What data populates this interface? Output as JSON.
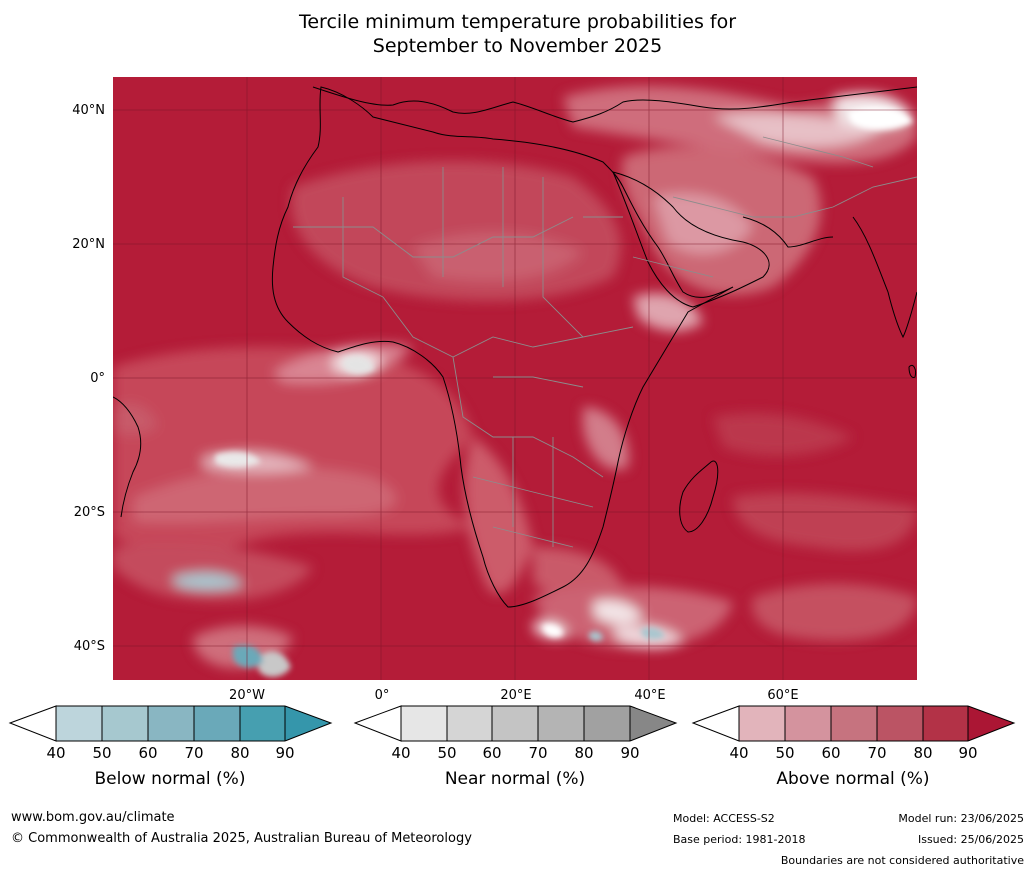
{
  "title_line1": "Tercile minimum temperature probabilities for",
  "title_line2": "September to November 2025",
  "map": {
    "lat_labels": [
      "40°N",
      "20°N",
      "0°",
      "20°S",
      "40°S"
    ],
    "lon_labels": [
      "20°W",
      "0°",
      "20°E",
      "40°E",
      "60°E"
    ],
    "base_color": "#b41c38",
    "graticule_color": "#7a1326",
    "coast_color": "#000000",
    "border_color": "#8c8c8c"
  },
  "legends": [
    {
      "label": "Below normal (%)",
      "ticks": [
        "40",
        "50",
        "60",
        "70",
        "80",
        "90"
      ],
      "colors": [
        "#bdd5dc",
        "#a6c8cf",
        "#89b6c2",
        "#6aa9b9",
        "#469fb0"
      ],
      "arrow_color": "#3596ab"
    },
    {
      "label": "Near normal (%)",
      "ticks": [
        "40",
        "50",
        "60",
        "70",
        "80",
        "90"
      ],
      "colors": [
        "#e6e6e6",
        "#d5d5d5",
        "#c4c4c4",
        "#b4b4b4",
        "#a1a1a1"
      ],
      "arrow_color": "#878787"
    },
    {
      "label": "Above normal (%)",
      "ticks": [
        "40",
        "50",
        "60",
        "70",
        "80",
        "90"
      ],
      "colors": [
        "#e2b4bb",
        "#d4939e",
        "#c6737f",
        "#bb5464",
        "#b33247"
      ],
      "arrow_color": "#ab1634"
    }
  ],
  "footer": {
    "website": "www.bom.gov.au/climate",
    "copyright": "© Commonwealth of Australia 2025, Australian Bureau of Meteorology",
    "model": "Model: ACCESS-S2",
    "base_period": "Base period: 1981-2018",
    "model_run": "Model run: 23/06/2025",
    "issued": "Issued: 25/06/2025",
    "disclaimer": "Boundaries are not considered authoritative"
  }
}
